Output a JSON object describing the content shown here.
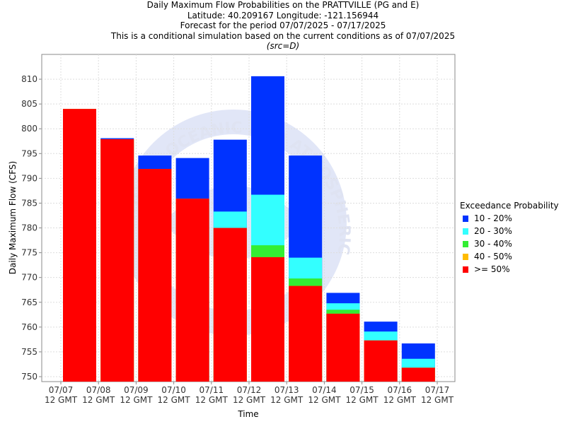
{
  "title_lines": {
    "line1": "Daily Maximum Flow Probabilities on the PRATTVILLE (PG and E)",
    "line2": "Latitude: 40.209167 Longitude: -121.156944",
    "line3": "Forecast for the period 07/07/2025 - 07/17/2025",
    "line4": "This is a conditional simulation based on the current conditions as of 07/07/2025",
    "line5": "(src=D)"
  },
  "watermark": "NATIONAL OCEANIC AND ATMOSPHERIC ADMINISTRATION",
  "legend": {
    "title": "Exceedance Probability",
    "items": [
      {
        "label": "10 - 20%",
        "color": "#0033ff"
      },
      {
        "label": "20 - 30%",
        "color": "#33ffff"
      },
      {
        "label": "30 - 40%",
        "color": "#33ee33"
      },
      {
        "label": "40 - 50%",
        "color": "#ffbb00"
      },
      {
        "label": ">= 50%",
        "color": "#ff0000"
      }
    ]
  },
  "chart_data": {
    "type": "bar",
    "stacked": true,
    "xlabel": "Time",
    "ylabel": "Daily Maximum Flow (CFS)",
    "ylim": [
      749,
      815
    ],
    "yticks": [
      750,
      755,
      760,
      765,
      770,
      775,
      780,
      785,
      790,
      795,
      800,
      805,
      810
    ],
    "x_tick_labels": [
      [
        "07/07",
        "12 GMT"
      ],
      [
        "07/08",
        "12 GMT"
      ],
      [
        "07/09",
        "12 GMT"
      ],
      [
        "07/10",
        "12 GMT"
      ],
      [
        "07/11",
        "12 GMT"
      ],
      [
        "07/12",
        "12 GMT"
      ],
      [
        "07/13",
        "12 GMT"
      ],
      [
        "07/14",
        "12 GMT"
      ],
      [
        "07/15",
        "12 GMT"
      ],
      [
        "07/16",
        "12 GMT"
      ],
      [
        "07/17",
        "12 GMT"
      ]
    ],
    "categories": [
      "07/07",
      "07/08",
      "07/09",
      "07/10",
      "07/11",
      "07/12",
      "07/13",
      "07/14",
      "07/15",
      "07/16"
    ],
    "series_tops": [
      {
        "name": ">= 50%",
        "color": "#ff0000",
        "values": [
          804.0,
          797.9,
          791.9,
          785.9,
          780.0,
          774.1,
          768.3,
          762.7,
          757.3,
          751.8
        ]
      },
      {
        "name": "40 - 50%",
        "color": "#ffbb00",
        "values": [
          804.0,
          797.9,
          791.9,
          785.9,
          780.0,
          774.1,
          768.3,
          762.7,
          757.3,
          751.8
        ]
      },
      {
        "name": "30 - 40%",
        "color": "#33ee33",
        "values": [
          804.0,
          797.9,
          791.9,
          785.9,
          780.0,
          776.5,
          769.8,
          763.5,
          757.3,
          751.8
        ]
      },
      {
        "name": "20 - 30%",
        "color": "#33ffff",
        "values": [
          804.0,
          797.9,
          791.9,
          785.9,
          783.3,
          786.7,
          774.0,
          764.8,
          759.1,
          753.6
        ]
      },
      {
        "name": "10 - 20%",
        "color": "#0033ff",
        "values": [
          804.0,
          798.1,
          794.6,
          794.1,
          797.8,
          810.6,
          794.6,
          766.9,
          761.1,
          756.7
        ]
      }
    ],
    "grid": true,
    "legend_position": "right"
  }
}
